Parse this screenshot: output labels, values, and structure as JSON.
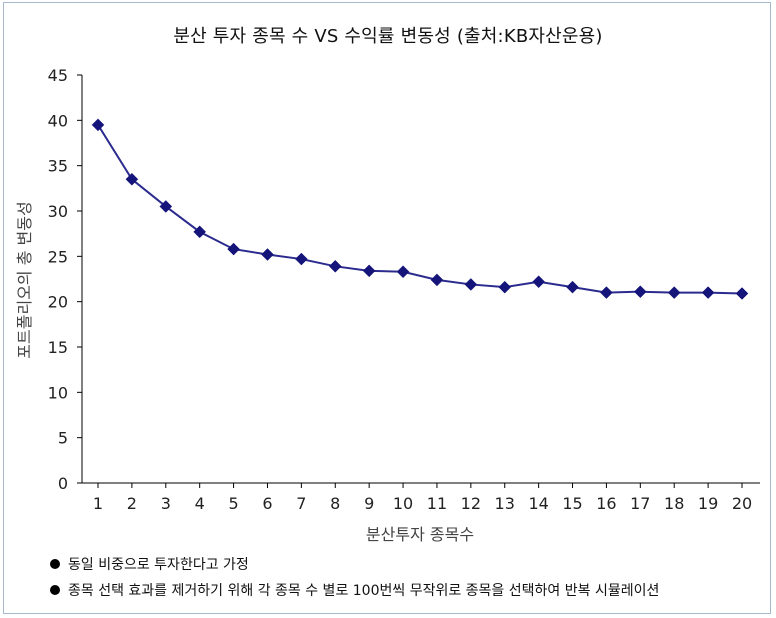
{
  "chart_data": {
    "type": "line",
    "title": "분산 투자 종목 수 VS 수익률 변동성 (출처:KB자산운용)",
    "xlabel": "분산투자 종목수",
    "ylabel": "포트폴리오의 총 변동성",
    "x": [
      1,
      2,
      3,
      4,
      5,
      6,
      7,
      8,
      9,
      10,
      11,
      12,
      13,
      14,
      15,
      16,
      17,
      18,
      19,
      20
    ],
    "series": [
      {
        "values": [
          39.5,
          33.5,
          30.5,
          27.7,
          25.8,
          25.2,
          24.7,
          23.9,
          23.4,
          23.3,
          22.4,
          21.9,
          21.6,
          22.2,
          21.6,
          21.0,
          21.1,
          21.0,
          21.0,
          20.9
        ]
      }
    ],
    "ylim": [
      0,
      45
    ],
    "yticks": [
      0,
      5,
      10,
      15,
      20,
      25,
      30,
      35,
      40,
      45
    ],
    "xticks": [
      1,
      2,
      3,
      4,
      5,
      6,
      7,
      8,
      9,
      10,
      11,
      12,
      13,
      14,
      15,
      16,
      17,
      18,
      19,
      20
    ],
    "grid": false,
    "line_color": "#2b2b8f",
    "marker_color": "#14147a",
    "marker": "diamond"
  },
  "notes": [
    "동일 비중으로 투자한다고 가정",
    "종목 선택 효과를 제거하기 위해 각 종목 수 별로 100번씩 무작위로 종목을 선택하여 반복 시뮬레이션"
  ]
}
